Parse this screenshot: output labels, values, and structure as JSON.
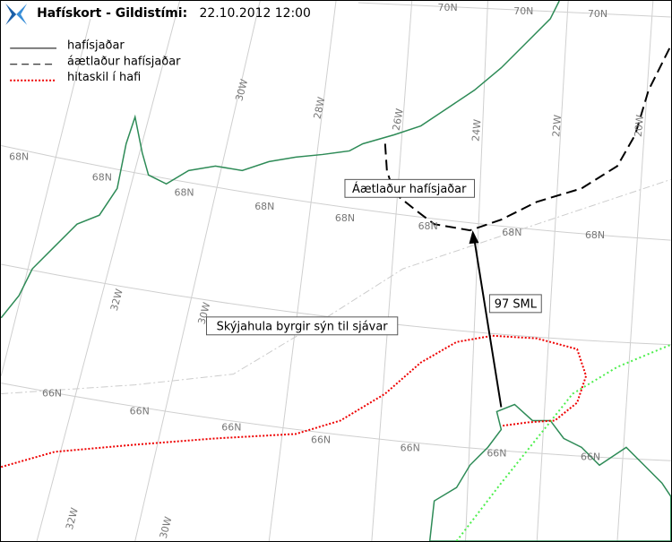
{
  "header": {
    "title": "Hafískort - Gildistími:",
    "valid_time": "22.10.2012 12:00"
  },
  "legend": [
    "hafísjaðar",
    "áætlaður hafísjaðar",
    "hitaskil í hafi"
  ],
  "annotations": [
    "Áætlaður hafísjaðar",
    "97 SML",
    "Skýjahula byrgir sýn til sjávar"
  ],
  "grid_labels": [
    "70N",
    "70N",
    "70N",
    "68N",
    "68N",
    "68N",
    "68N",
    "68N",
    "68N",
    "68N",
    "68N",
    "66N",
    "66N",
    "66N",
    "66N",
    "66N",
    "66N",
    "66N",
    "30W",
    "28W",
    "26W",
    "24W",
    "22W",
    "20W",
    "32W",
    "30W",
    "32W",
    "30W"
  ]
}
